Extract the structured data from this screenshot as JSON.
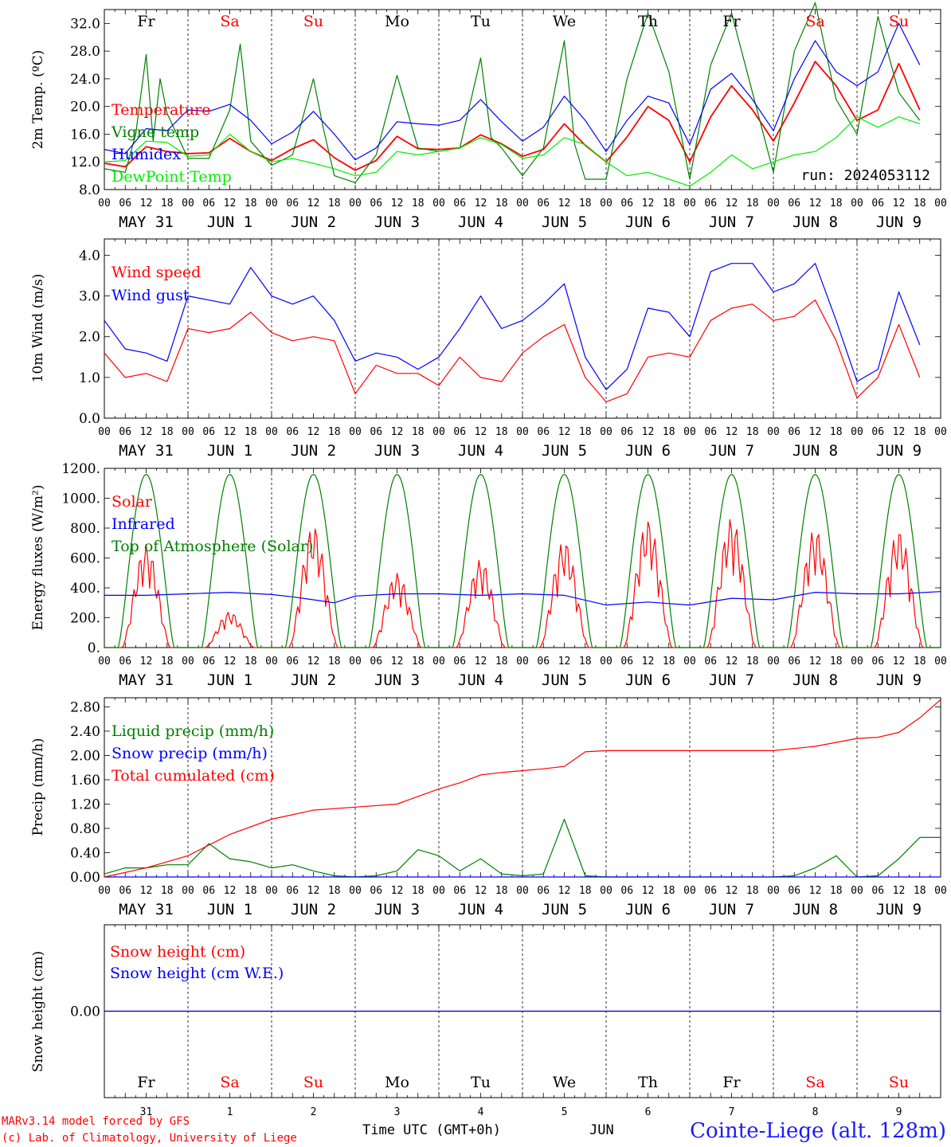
{
  "chart_data": [
    {
      "type": "line",
      "ylabel": "2m Temp. (ºC)",
      "ylim": [
        8,
        34
      ],
      "yticks": [
        "8.0",
        "12.0",
        "16.0",
        "20.0",
        "24.0",
        "28.0",
        "32.0"
      ],
      "ytick_values": [
        8,
        12,
        16,
        20,
        24,
        28,
        32
      ],
      "x_unit": "hours since 2024-05-31 00 UTC",
      "series": [
        {
          "name": "Temperature",
          "color": "#ff0000",
          "x": [
            0,
            6,
            12,
            18,
            24,
            30,
            36,
            42,
            48,
            54,
            60,
            66,
            72,
            78,
            84,
            90,
            96,
            102,
            108,
            114,
            120,
            126,
            132,
            138,
            144,
            150,
            156,
            162,
            168,
            174,
            180,
            186,
            192,
            198,
            204,
            210,
            216,
            222,
            228,
            234
          ],
          "y": [
            11.8,
            11.3,
            14.2,
            13.5,
            13.2,
            13.3,
            15.4,
            13.5,
            12.2,
            13.9,
            15.2,
            12.6,
            10.8,
            12.2,
            15.7,
            13.9,
            13.8,
            14.0,
            15.9,
            14.6,
            12.8,
            13.8,
            17.5,
            14.4,
            12.0,
            15.6,
            20.0,
            18.0,
            12.0,
            18.5,
            23.0,
            19.5,
            15.0,
            20.5,
            26.5,
            23.0,
            18.0,
            19.5,
            26.2,
            19.5
          ]
        },
        {
          "name": "Vigne temp",
          "color": "#008000",
          "x": [
            0,
            6,
            9,
            12,
            14,
            16,
            18,
            24,
            30,
            36,
            39,
            42,
            48,
            54,
            60,
            63,
            66,
            72,
            78,
            84,
            90,
            96,
            102,
            108,
            111,
            114,
            120,
            126,
            132,
            135,
            138,
            144,
            150,
            156,
            162,
            168,
            174,
            180,
            186,
            192,
            198,
            204,
            210,
            216,
            222,
            228,
            234
          ],
          "y": [
            11.0,
            10.5,
            16.0,
            27.5,
            15.0,
            24.0,
            19.0,
            12.5,
            12.5,
            19.5,
            29.0,
            15.0,
            11.5,
            13.0,
            24.0,
            16.5,
            10.0,
            9.0,
            13.0,
            24.5,
            14.0,
            13.5,
            14.0,
            27.0,
            15.5,
            14.0,
            10.0,
            14.0,
            29.5,
            14.5,
            9.5,
            9.5,
            24.0,
            33.5,
            25.0,
            9.5,
            26.0,
            33.5,
            22.0,
            10.5,
            28.0,
            35.0,
            21.0,
            16.0,
            33.0,
            22.0,
            18.0
          ]
        },
        {
          "name": "Humidex",
          "color": "#0000ff",
          "x": [
            0,
            6,
            12,
            18,
            24,
            30,
            36,
            42,
            48,
            54,
            60,
            66,
            72,
            78,
            84,
            90,
            96,
            102,
            108,
            114,
            120,
            126,
            132,
            138,
            144,
            150,
            156,
            162,
            168,
            174,
            180,
            186,
            192,
            198,
            204,
            210,
            216,
            222,
            228,
            234
          ],
          "y": [
            13.8,
            13.2,
            16.8,
            16.5,
            19.5,
            19.3,
            20.3,
            18.0,
            14.6,
            16.3,
            19.3,
            16.0,
            12.3,
            14.0,
            17.8,
            17.5,
            17.3,
            18.0,
            21.0,
            17.8,
            15.0,
            17.0,
            21.5,
            18.0,
            13.5,
            18.0,
            21.5,
            20.5,
            14.5,
            22.5,
            24.8,
            21.0,
            16.5,
            24.0,
            29.5,
            25.0,
            23.0,
            25.0,
            32.0,
            26.0
          ]
        },
        {
          "name": "DewPoint Temp",
          "color": "#00ee00",
          "x": [
            0,
            6,
            12,
            18,
            24,
            30,
            36,
            42,
            48,
            54,
            60,
            66,
            72,
            78,
            84,
            90,
            96,
            102,
            108,
            114,
            120,
            126,
            132,
            138,
            144,
            150,
            156,
            162,
            168,
            174,
            180,
            186,
            192,
            198,
            204,
            210,
            216,
            222,
            228,
            234
          ],
          "y": [
            12.0,
            12.2,
            15.0,
            14.8,
            12.8,
            13.0,
            16.0,
            13.5,
            12.0,
            12.5,
            11.8,
            11.0,
            10.0,
            10.5,
            13.5,
            13.0,
            13.5,
            14.0,
            15.5,
            14.5,
            12.5,
            13.0,
            15.5,
            14.5,
            12.0,
            10.0,
            10.5,
            9.5,
            8.5,
            10.5,
            13.0,
            11.0,
            12.0,
            13.0,
            13.5,
            15.5,
            18.5,
            17.0,
            18.5,
            17.5
          ]
        }
      ],
      "annotation": "run: 2024053112"
    },
    {
      "type": "line",
      "ylabel": "10m Wind (m/s)",
      "ylim": [
        0,
        4.4
      ],
      "yticks": [
        "0.0",
        "1.0",
        "2.0",
        "3.0",
        "4.0"
      ],
      "ytick_values": [
        0,
        1,
        2,
        3,
        4
      ],
      "x_unit": "hours since 2024-05-31 00 UTC",
      "series": [
        {
          "name": "Wind speed",
          "color": "#ff0000",
          "x": [
            0,
            6,
            12,
            18,
            24,
            30,
            36,
            42,
            48,
            54,
            60,
            66,
            72,
            78,
            84,
            90,
            96,
            102,
            108,
            114,
            120,
            126,
            132,
            138,
            144,
            150,
            156,
            162,
            168,
            174,
            180,
            186,
            192,
            198,
            204,
            210,
            216,
            222,
            228,
            234
          ],
          "y": [
            1.6,
            1.0,
            1.1,
            0.9,
            2.2,
            2.1,
            2.2,
            2.6,
            2.1,
            1.9,
            2.0,
            1.9,
            0.6,
            1.3,
            1.1,
            1.1,
            0.8,
            1.5,
            1.0,
            0.9,
            1.6,
            2.0,
            2.3,
            1.0,
            0.4,
            0.6,
            1.5,
            1.6,
            1.5,
            2.4,
            2.7,
            2.8,
            2.4,
            2.5,
            2.9,
            1.9,
            0.5,
            1.0,
            2.3,
            1.0
          ]
        },
        {
          "name": "Wind gust",
          "color": "#0000ff",
          "x": [
            0,
            6,
            12,
            18,
            24,
            30,
            36,
            42,
            48,
            54,
            60,
            66,
            72,
            78,
            84,
            90,
            96,
            102,
            108,
            114,
            120,
            126,
            132,
            138,
            144,
            150,
            156,
            162,
            168,
            174,
            180,
            186,
            192,
            198,
            204,
            210,
            216,
            222,
            228,
            234
          ],
          "y": [
            2.4,
            1.7,
            1.6,
            1.4,
            3.0,
            2.9,
            2.8,
            3.7,
            3.0,
            2.8,
            3.0,
            2.4,
            1.4,
            1.6,
            1.5,
            1.2,
            1.5,
            2.2,
            3.0,
            2.2,
            2.4,
            2.8,
            3.3,
            1.5,
            0.7,
            1.2,
            2.7,
            2.6,
            2.0,
            3.6,
            3.8,
            3.8,
            3.1,
            3.3,
            3.8,
            2.4,
            0.9,
            1.2,
            3.1,
            1.8
          ]
        }
      ]
    },
    {
      "type": "line",
      "ylabel": "Energy fluxes (W/m²)",
      "ylim": [
        0,
        1200
      ],
      "yticks": [
        "0.",
        "200.",
        "400.",
        "600.",
        "800.",
        "1000.",
        "1200."
      ],
      "ytick_values": [
        0,
        200,
        400,
        600,
        800,
        1000,
        1200
      ],
      "x_unit": "hours since 2024-05-31 00 UTC",
      "toa_daily_peak": 1160,
      "toa_daylight_hours": [
        4,
        20
      ],
      "series": [
        {
          "name": "Solar",
          "color": "#ff0000",
          "daily_peaks": [
            690,
            240,
            820,
            500,
            590,
            720,
            860,
            870,
            800,
            790
          ]
        },
        {
          "name": "Infrared",
          "color": "#0000ff",
          "x": [
            0,
            12,
            24,
            36,
            48,
            54,
            60,
            66,
            72,
            84,
            96,
            108,
            120,
            132,
            144,
            156,
            168,
            180,
            192,
            204,
            216,
            228,
            240
          ],
          "y": [
            350,
            350,
            360,
            370,
            355,
            340,
            320,
            300,
            345,
            360,
            360,
            350,
            360,
            350,
            285,
            305,
            285,
            330,
            320,
            370,
            360,
            360,
            375
          ]
        },
        {
          "name": "Top of Atmosphere (Solar)",
          "color": "#008000"
        }
      ]
    },
    {
      "type": "line",
      "ylabel": "Precip (mm/h)",
      "ylim": [
        0,
        2.95
      ],
      "yticks": [
        "0.00",
        "0.40",
        "0.80",
        "1.20",
        "1.60",
        "2.00",
        "2.40",
        "2.80"
      ],
      "ytick_values": [
        0,
        0.4,
        0.8,
        1.2,
        1.6,
        2.0,
        2.4,
        2.8
      ],
      "x_unit": "hours since 2024-05-31 00 UTC",
      "series": [
        {
          "name": "Liquid precip (mm/h)",
          "color": "#008000",
          "x": [
            0,
            6,
            12,
            18,
            24,
            30,
            36,
            42,
            48,
            54,
            60,
            66,
            72,
            78,
            84,
            90,
            96,
            102,
            108,
            114,
            120,
            126,
            132,
            138,
            144,
            150,
            156,
            162,
            168,
            174,
            180,
            186,
            192,
            198,
            204,
            210,
            216,
            222,
            228,
            234,
            240
          ],
          "y": [
            0.05,
            0.15,
            0.15,
            0.2,
            0.2,
            0.55,
            0.3,
            0.25,
            0.15,
            0.2,
            0.1,
            0.02,
            0.0,
            0.02,
            0.1,
            0.45,
            0.35,
            0.1,
            0.3,
            0.05,
            0.02,
            0.05,
            0.95,
            0.02,
            0.0,
            0.0,
            0.0,
            0.0,
            0.0,
            0.0,
            0.0,
            0.0,
            0.0,
            0.02,
            0.15,
            0.35,
            0.0,
            0.02,
            0.3,
            0.65,
            0.65
          ]
        },
        {
          "name": "Snow precip (mm/h)",
          "color": "#0000ff",
          "x": [
            0,
            240
          ],
          "y": [
            0,
            0
          ]
        },
        {
          "name": "Total cumulated (cm)",
          "color": "#ff0000",
          "x": [
            0,
            12,
            24,
            36,
            48,
            60,
            72,
            84,
            96,
            102,
            108,
            114,
            120,
            126,
            132,
            138,
            144,
            156,
            168,
            180,
            192,
            204,
            216,
            222,
            228,
            234,
            240
          ],
          "y": [
            0.0,
            0.15,
            0.35,
            0.7,
            0.95,
            1.1,
            1.15,
            1.2,
            1.45,
            1.55,
            1.68,
            1.72,
            1.75,
            1.78,
            1.82,
            2.06,
            2.08,
            2.08,
            2.08,
            2.08,
            2.08,
            2.15,
            2.28,
            2.3,
            2.38,
            2.62,
            2.92
          ]
        }
      ]
    },
    {
      "type": "line",
      "ylabel": "Snow height (cm)",
      "ylim": [
        -1,
        1
      ],
      "yticks": [
        "0.00"
      ],
      "ytick_values": [
        0
      ],
      "x_unit": "hours since 2024-05-31 00 UTC",
      "series": [
        {
          "name": "Snow height (cm)",
          "color": "#ff0000",
          "x": [
            0,
            240
          ],
          "y": [
            0,
            0
          ]
        },
        {
          "name": "Snow height (cm W.E.)",
          "color": "#0000ff",
          "x": [
            0,
            240
          ],
          "y": [
            0,
            0
          ]
        }
      ]
    }
  ],
  "days": {
    "top_weekdays": [
      "Fr",
      "Sa",
      "Su",
      "Mo",
      "Tu",
      "We",
      "Th",
      "Fr",
      "Sa",
      "Su"
    ],
    "weekday_colors": [
      "#000000",
      "#ff0000",
      "#ff0000",
      "#000000",
      "#000000",
      "#000000",
      "#000000",
      "#000000",
      "#ff0000",
      "#ff0000"
    ],
    "hour_ticks": [
      "00",
      "06",
      "12",
      "18"
    ],
    "hour_end": "00",
    "date_labels": [
      "MAY 31",
      "JUN  1",
      "JUN  2",
      "JUN  3",
      "JUN  4",
      "JUN  5",
      "JUN  6",
      "JUN  7",
      "JUN  8",
      "JUN  9"
    ],
    "day_numbers": [
      "31",
      "1",
      "2",
      "3",
      "4",
      "5",
      "6",
      "7",
      "8",
      "9"
    ],
    "bottom_month": "JUN"
  },
  "footer": {
    "model_line": "MARv3.14 model forced by GFS",
    "credit_line": "(c) Lab. of Climatology, University of Liege",
    "time_label": "Time UTC (GMT+0h)",
    "station": "Cointe-Liege (alt. 128m)"
  }
}
